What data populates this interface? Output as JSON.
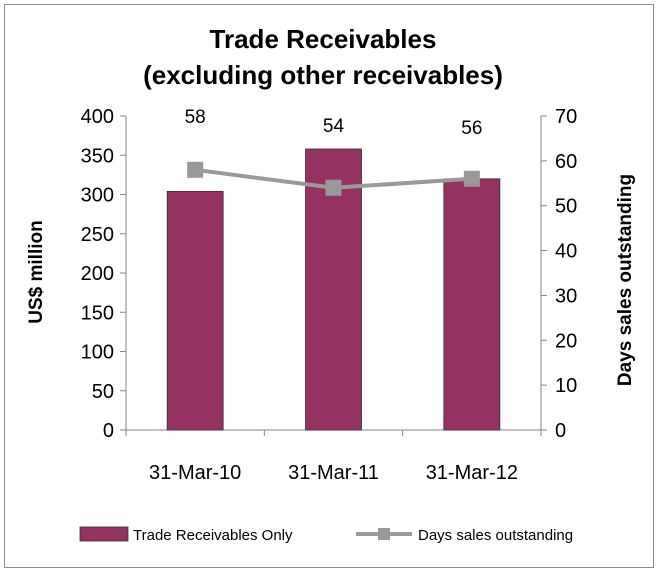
{
  "chart_data": {
    "type": "bar+line",
    "title": [
      "Trade Receivables",
      "(excluding other receivables)"
    ],
    "categories": [
      "31-Mar-10",
      "31-Mar-11",
      "31-Mar-12"
    ],
    "ylabel_left": "US$ million",
    "ylabel_right": "Days sales outstanding",
    "ylim_left": [
      0,
      400
    ],
    "ylim_right": [
      0,
      70
    ],
    "yticks_left": [
      0,
      50,
      100,
      150,
      200,
      250,
      300,
      350,
      400
    ],
    "yticks_right": [
      0,
      10,
      20,
      30,
      40,
      50,
      60,
      70
    ],
    "grid": false,
    "legend_position": "bottom",
    "series": [
      {
        "name": "Trade Receivables Only",
        "type": "bar",
        "axis": "left",
        "values": [
          304,
          358,
          320
        ],
        "color": "#953262"
      },
      {
        "name": "Days sales outstanding",
        "type": "line",
        "axis": "right",
        "values": [
          58,
          54,
          56
        ],
        "data_labels": [
          "58",
          "54",
          "56"
        ],
        "color": "#999999",
        "marker": "square"
      }
    ]
  }
}
